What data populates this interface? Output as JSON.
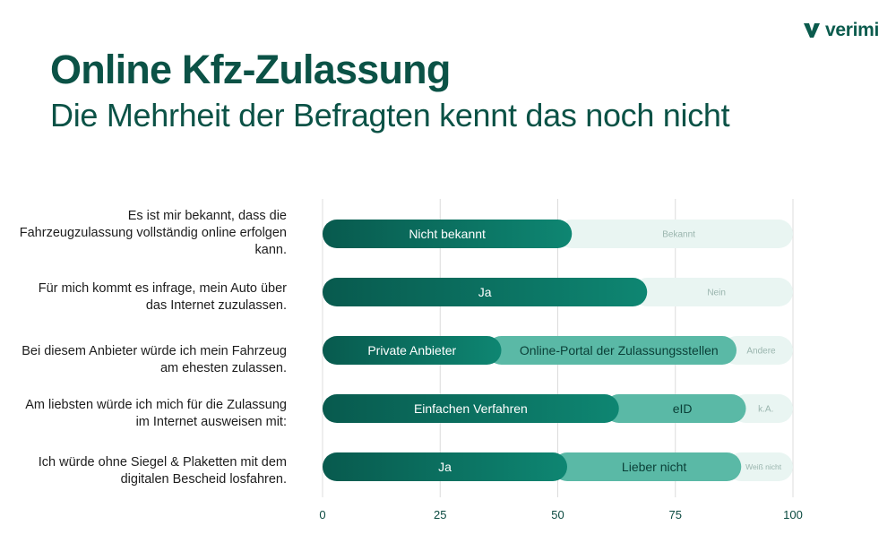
{
  "brand": {
    "name": "verimi"
  },
  "header": {
    "title": "Online Kfz-Zulassung",
    "subtitle": "Die Mehrheit der Befragten kennt das noch nicht"
  },
  "colors": {
    "primary": "#0a6f5f",
    "secondary": "#5ab9a6",
    "light": "#e9f5f2",
    "grid": "#dcdcdc"
  },
  "chart_data": {
    "type": "bar",
    "orientation": "horizontal",
    "stacked": true,
    "xlim": [
      0,
      100
    ],
    "xticks": [
      "0",
      "25",
      "50",
      "75",
      "100"
    ],
    "grid": true,
    "rows": [
      {
        "question": "Es ist mir bekannt, dass die Fahrzeugzulassung vollständig online erfolgen kann.",
        "segments": [
          {
            "label": "Nicht bekannt",
            "value": 53,
            "color": "#0a6f5f"
          },
          {
            "label": "Bekannt",
            "value": 47,
            "color": "#e9f5f2"
          }
        ]
      },
      {
        "question": "Für mich kommt es infrage, mein Auto über das Internet zuzulassen.",
        "segments": [
          {
            "label": "Ja",
            "value": 69,
            "color": "#0a6f5f"
          },
          {
            "label": "Nein",
            "value": 31,
            "color": "#e9f5f2"
          }
        ]
      },
      {
        "question": "Bei diesem Anbieter würde ich mein Fahrzeug am ehesten zulassen.",
        "segments": [
          {
            "label": "Private Anbieter",
            "value": 38,
            "color": "#0a6f5f"
          },
          {
            "label": "Online-Portal der Zulassungsstellen",
            "value": 50,
            "color": "#5ab9a6"
          },
          {
            "label": "Andere",
            "value": 12,
            "color": "#e9f5f2"
          }
        ]
      },
      {
        "question": "Am liebsten würde ich mich für die Zulassung im Internet ausweisen mit:",
        "segments": [
          {
            "label": "Einfachen Verfahren",
            "value": 63,
            "color": "#0a6f5f"
          },
          {
            "label": "eID",
            "value": 27,
            "color": "#5ab9a6"
          },
          {
            "label": "k.A.",
            "value": 10,
            "color": "#e9f5f2"
          }
        ]
      },
      {
        "question": "Ich würde ohne Siegel & Plaketten mit dem digitalen Bescheid losfahren.",
        "segments": [
          {
            "label": "Ja",
            "value": 52,
            "color": "#0a6f5f"
          },
          {
            "label": "Lieber nicht",
            "value": 37,
            "color": "#5ab9a6"
          },
          {
            "label": "Weiß nicht",
            "value": 11,
            "color": "#e9f5f2"
          }
        ]
      }
    ]
  }
}
